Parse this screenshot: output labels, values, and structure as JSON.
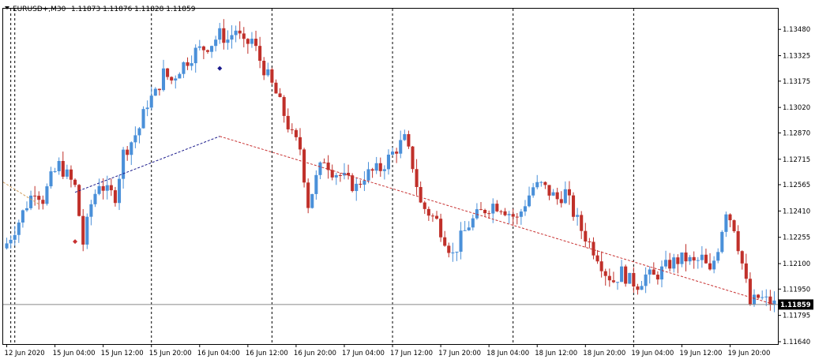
{
  "chart_data": {
    "type": "candlestick",
    "symbol": "EURUSD+,M30",
    "header": {
      "symbol_label": "EURUSD+,M30",
      "ohlc_label": "1.11873 1.11876 1.11828 1.11859"
    },
    "current_price": 1.11859,
    "current_price_label": "1.11859",
    "ylim": [
      1.1164,
      1.1356
    ],
    "y_ticks": [
      "1.13480",
      "1.13325",
      "1.13175",
      "1.13020",
      "1.12870",
      "1.12715",
      "1.12565",
      "1.12410",
      "1.12255",
      "1.12100",
      "1.11950",
      "1.11795",
      "1.11640"
    ],
    "x_ticks": [
      "12 Jun 2020",
      "15 Jun 04:00",
      "15 Jun 12:00",
      "15 Jun 20:00",
      "16 Jun 04:00",
      "16 Jun 12:00",
      "16 Jun 20:00",
      "17 Jun 04:00",
      "17 Jun 12:00",
      "17 Jun 20:00",
      "18 Jun 04:00",
      "18 Jun 12:00",
      "18 Jun 20:00",
      "19 Jun 04:00",
      "19 Jun 12:00",
      "19 Jun 20:00"
    ],
    "close_path": [
      [
        0,
        1.1222
      ],
      [
        3,
        1.1235
      ],
      [
        5,
        1.1245
      ],
      [
        7,
        1.1254
      ],
      [
        9,
        1.1248
      ],
      [
        11,
        1.126
      ],
      [
        13,
        1.1268
      ],
      [
        15,
        1.1262
      ],
      [
        17,
        1.1255
      ],
      [
        19,
        1.1222
      ],
      [
        21,
        1.1245
      ],
      [
        23,
        1.1258
      ],
      [
        25,
        1.1252
      ],
      [
        27,
        1.125
      ],
      [
        29,
        1.1275
      ],
      [
        31,
        1.1282
      ],
      [
        33,
        1.129
      ],
      [
        35,
        1.1305
      ],
      [
        37,
        1.131
      ],
      [
        39,
        1.1322
      ],
      [
        41,
        1.1318
      ],
      [
        43,
        1.1325
      ],
      [
        45,
        1.133
      ],
      [
        47,
        1.1335
      ],
      [
        49,
        1.1337
      ],
      [
        51,
        1.134
      ],
      [
        53,
        1.1345
      ],
      [
        55,
        1.1342
      ],
      [
        57,
        1.1348
      ],
      [
        59,
        1.1338
      ],
      [
        61,
        1.1342
      ],
      [
        63,
        1.133
      ],
      [
        65,
        1.132
      ],
      [
        67,
        1.131
      ],
      [
        69,
        1.1298
      ],
      [
        71,
        1.1285
      ],
      [
        73,
        1.1278
      ],
      [
        75,
        1.1245
      ],
      [
        77,
        1.126
      ],
      [
        79,
        1.1272
      ],
      [
        81,
        1.1265
      ],
      [
        83,
        1.1262
      ],
      [
        85,
        1.1258
      ],
      [
        87,
        1.1255
      ],
      [
        89,
        1.1262
      ],
      [
        91,
        1.1264
      ],
      [
        93,
        1.1266
      ],
      [
        95,
        1.1272
      ],
      [
        97,
        1.1278
      ],
      [
        99,
        1.1283
      ],
      [
        101,
        1.1268
      ],
      [
        103,
        1.1245
      ],
      [
        105,
        1.124
      ],
      [
        107,
        1.1235
      ],
      [
        109,
        1.1225
      ],
      [
        111,
        1.1215
      ],
      [
        113,
        1.1225
      ],
      [
        115,
        1.1233
      ],
      [
        117,
        1.1238
      ],
      [
        119,
        1.1242
      ],
      [
        121,
        1.1245
      ],
      [
        123,
        1.1244
      ],
      [
        125,
        1.124
      ],
      [
        127,
        1.1236
      ],
      [
        129,
        1.1246
      ],
      [
        131,
        1.1255
      ],
      [
        133,
        1.1256
      ],
      [
        135,
        1.1252
      ],
      [
        137,
        1.1248
      ],
      [
        139,
        1.1252
      ],
      [
        141,
        1.124
      ],
      [
        143,
        1.123
      ],
      [
        145,
        1.1222
      ],
      [
        147,
        1.1215
      ],
      [
        149,
        1.1205
      ],
      [
        151,
        1.12
      ],
      [
        153,
        1.1205
      ],
      [
        155,
        1.12
      ],
      [
        157,
        1.1198
      ],
      [
        159,
        1.1203
      ],
      [
        161,
        1.1202
      ],
      [
        163,
        1.1206
      ],
      [
        165,
        1.121
      ],
      [
        167,
        1.1212
      ],
      [
        169,
        1.1213
      ],
      [
        171,
        1.121
      ],
      [
        173,
        1.1213
      ],
      [
        175,
        1.1204
      ],
      [
        177,
        1.122
      ],
      [
        179,
        1.1242
      ],
      [
        181,
        1.1232
      ],
      [
        183,
        1.121
      ],
      [
        185,
        1.1186
      ],
      [
        187,
        1.119
      ],
      [
        189,
        1.1188
      ],
      [
        191,
        1.1186
      ]
    ],
    "trend_lines": [
      {
        "color": "#1a1a8c",
        "from": [
          17,
          1.1252
        ],
        "to": [
          53,
          1.1285
        ]
      },
      {
        "color": "#c83232",
        "from": [
          53,
          1.1285
        ],
        "to": [
          191,
          1.11859
        ]
      }
    ],
    "markers": [
      {
        "color": "#1a1a8c",
        "at": [
          53,
          1.1325
        ]
      },
      {
        "color": "#c83232",
        "at": [
          17,
          1.1223
        ]
      }
    ],
    "grid": "vertical dashed"
  }
}
